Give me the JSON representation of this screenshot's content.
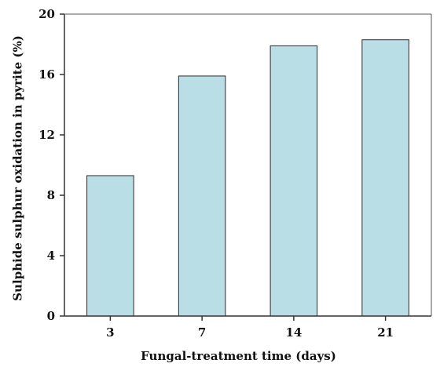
{
  "chart_data": {
    "type": "bar",
    "title": "",
    "xlabel": "Fungal-treatment time (days)",
    "ylabel": "Sulphide sulphur oxidation in pyrite (%)",
    "categories": [
      "3",
      "7",
      "14",
      "21"
    ],
    "values": [
      9.3,
      15.9,
      17.9,
      18.3
    ],
    "ylim": [
      0,
      20
    ],
    "yticks": [
      "0",
      "4",
      "8",
      "12",
      "16",
      "20"
    ],
    "grid": false,
    "colors": {
      "bar_fill": "#b9dee6",
      "bar_stroke": "#2b2b2b",
      "axis": "#333333"
    }
  }
}
